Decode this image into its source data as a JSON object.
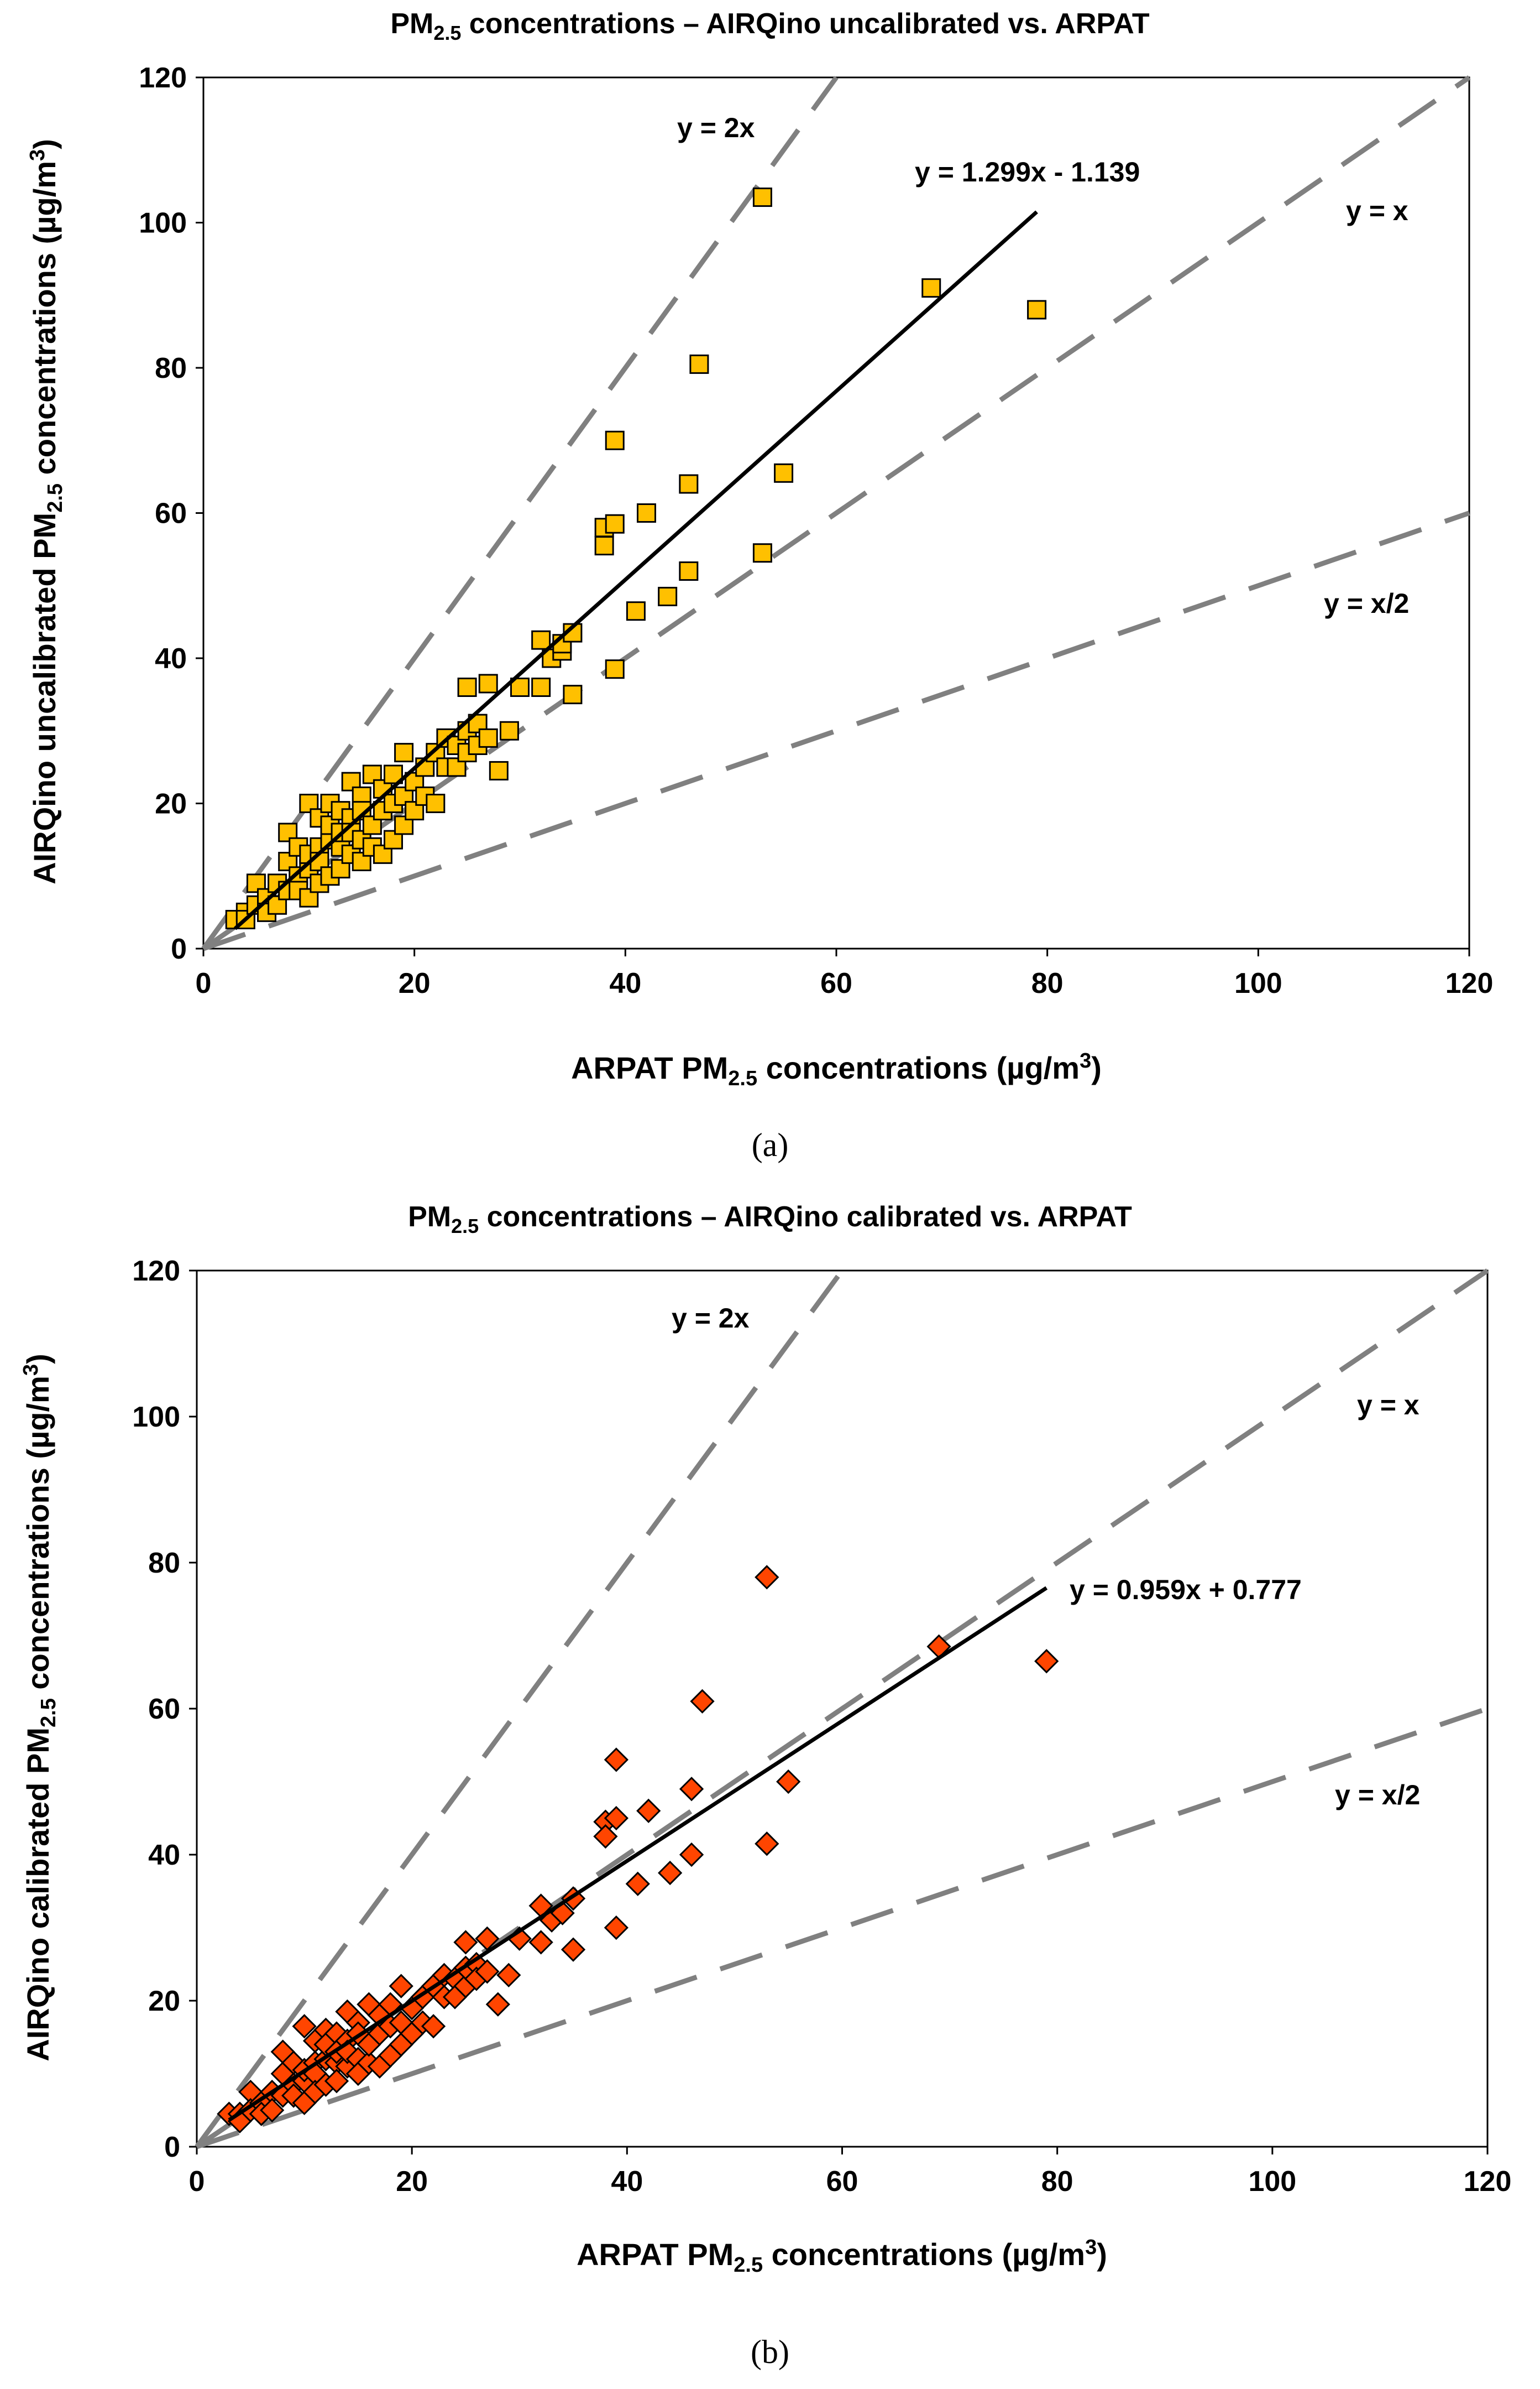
{
  "chart_data": [
    {
      "type": "scatter",
      "title_prefix": "PM",
      "title_sub": "2.5",
      "title_suffix": " concentrations – AIRQino uncalibrated vs. ARPAT",
      "xlabel_prefix": "ARPAT PM",
      "xlabel_sub": "2.5",
      "xlabel_suffix": " concentrations (µg/m",
      "xlabel_sup": "3",
      "xlabel_end": ")",
      "ylabel_prefix": "AIRQino uncalibrated PM",
      "ylabel_sub": "2.5",
      "ylabel_suffix": " concentrations (µg/m",
      "ylabel_sup": "3",
      "ylabel_end": ")",
      "xlim": [
        0,
        120
      ],
      "ylim": [
        0,
        120
      ],
      "xticks": [
        "0",
        "20",
        "40",
        "60",
        "80",
        "100",
        "120"
      ],
      "yticks": [
        "0",
        "20",
        "40",
        "60",
        "80",
        "100",
        "120"
      ],
      "caption": "(a)",
      "marker": "square",
      "marker_color": "#FFC000",
      "ref_lines": [
        {
          "label": "y = 2x",
          "slope": 2
        },
        {
          "label": "y = x",
          "slope": 1
        },
        {
          "label": "y = x/2",
          "slope": 0.5
        }
      ],
      "fit": {
        "label": "y = 1.299x - 1.139",
        "slope": 1.299,
        "intercept": -1.139,
        "x_range": [
          3,
          79
        ]
      },
      "series": [
        {
          "name": "AIRQino uncalibrated",
          "points": [
            [
              3,
              4
            ],
            [
              4,
              5
            ],
            [
              4,
              4
            ],
            [
              5,
              9
            ],
            [
              5,
              6
            ],
            [
              6,
              7
            ],
            [
              6,
              5
            ],
            [
              7,
              9
            ],
            [
              7,
              6
            ],
            [
              8,
              8
            ],
            [
              8,
              12
            ],
            [
              8,
              16
            ],
            [
              9,
              10
            ],
            [
              9,
              14
            ],
            [
              9,
              8
            ],
            [
              10,
              11
            ],
            [
              10,
              20
            ],
            [
              10,
              13
            ],
            [
              10,
              7
            ],
            [
              11,
              14
            ],
            [
              11,
              18
            ],
            [
              11,
              12
            ],
            [
              11,
              9
            ],
            [
              12,
              15
            ],
            [
              12,
              10
            ],
            [
              12,
              20
            ],
            [
              12,
              17
            ],
            [
              13,
              14
            ],
            [
              13,
              19
            ],
            [
              13,
              11
            ],
            [
              13,
              16
            ],
            [
              14,
              13
            ],
            [
              14,
              18
            ],
            [
              14,
              23
            ],
            [
              14,
              16
            ],
            [
              15,
              15
            ],
            [
              15,
              12
            ],
            [
              15,
              21
            ],
            [
              15,
              19
            ],
            [
              16,
              14
            ],
            [
              16,
              24
            ],
            [
              16,
              17
            ],
            [
              17,
              13
            ],
            [
              17,
              19
            ],
            [
              17,
              22
            ],
            [
              18,
              15
            ],
            [
              18,
              20
            ],
            [
              18,
              24
            ],
            [
              19,
              17
            ],
            [
              19,
              21
            ],
            [
              19,
              27
            ],
            [
              20,
              19
            ],
            [
              20,
              23
            ],
            [
              21,
              21
            ],
            [
              21,
              25
            ],
            [
              22,
              20
            ],
            [
              22,
              27
            ],
            [
              23,
              25
            ],
            [
              23,
              29
            ],
            [
              24,
              28
            ],
            [
              24,
              25
            ],
            [
              25,
              27
            ],
            [
              25,
              30
            ],
            [
              25,
              36
            ],
            [
              26,
              31
            ],
            [
              26,
              28
            ],
            [
              27,
              29
            ],
            [
              27,
              36.5
            ],
            [
              28,
              24.5
            ],
            [
              29,
              30
            ],
            [
              30,
              36
            ],
            [
              32,
              36
            ],
            [
              32,
              42.5
            ],
            [
              33,
              40
            ],
            [
              34,
              41
            ],
            [
              34,
              42
            ],
            [
              35,
              35
            ],
            [
              35,
              43.5
            ],
            [
              38,
              58
            ],
            [
              38,
              55.5
            ],
            [
              39,
              70
            ],
            [
              39,
              38.5
            ],
            [
              39,
              58.5
            ],
            [
              41,
              46.5
            ],
            [
              42,
              60
            ],
            [
              44,
              48.5
            ],
            [
              46,
              64
            ],
            [
              46,
              52
            ],
            [
              47,
              80.5
            ],
            [
              53,
              103.5
            ],
            [
              53,
              54.5
            ],
            [
              55,
              65.5
            ],
            [
              69,
              91
            ],
            [
              79,
              88
            ]
          ]
        }
      ]
    },
    {
      "type": "scatter",
      "title_prefix": "PM",
      "title_sub": "2.5",
      "title_suffix": " concentrations – AIRQino calibrated vs. ARPAT",
      "xlabel_prefix": "ARPAT PM",
      "xlabel_sub": "2.5",
      "xlabel_suffix": " concentrations (µg/m",
      "xlabel_sup": "3",
      "xlabel_end": ")",
      "ylabel_prefix": "AIRQino calibrated PM",
      "ylabel_sub": "2.5",
      "ylabel_suffix": " concentrations (µg/m",
      "ylabel_sup": "3",
      "ylabel_end": ")",
      "xlim": [
        0,
        120
      ],
      "ylim": [
        0,
        120
      ],
      "xticks": [
        "0",
        "20",
        "40",
        "60",
        "80",
        "100",
        "120"
      ],
      "yticks": [
        "0",
        "20",
        "40",
        "60",
        "80",
        "100",
        "120"
      ],
      "caption": "(b)",
      "marker": "diamond",
      "marker_color": "#FF4500",
      "ref_lines": [
        {
          "label": "y = 2x",
          "slope": 2
        },
        {
          "label": "y = x",
          "slope": 1
        },
        {
          "label": "y = x/2",
          "slope": 0.5
        }
      ],
      "fit": {
        "label": "y = 0.959x + 0.777",
        "slope": 0.959,
        "intercept": 0.777,
        "x_range": [
          3,
          79
        ]
      },
      "series": [
        {
          "name": "AIRQino calibrated",
          "points": [
            [
              3,
              4.5
            ],
            [
              4,
              4.5
            ],
            [
              4,
              3.5
            ],
            [
              5,
              7.5
            ],
            [
              5,
              5
            ],
            [
              6,
              6
            ],
            [
              6,
              4.5
            ],
            [
              7,
              7.5
            ],
            [
              7,
              5
            ],
            [
              8,
              7
            ],
            [
              8,
              10
            ],
            [
              8,
              13
            ],
            [
              9,
              8.5
            ],
            [
              9,
              11.5
            ],
            [
              9,
              7
            ],
            [
              10,
              9
            ],
            [
              10,
              16.5
            ],
            [
              10,
              10.5
            ],
            [
              10,
              6
            ],
            [
              11,
              11.5
            ],
            [
              11,
              14.5
            ],
            [
              11,
              10
            ],
            [
              11,
              7.5
            ],
            [
              12,
              12
            ],
            [
              12,
              8.5
            ],
            [
              12,
              16
            ],
            [
              12,
              14
            ],
            [
              13,
              11.5
            ],
            [
              13,
              15.5
            ],
            [
              13,
              9
            ],
            [
              13,
              13
            ],
            [
              14,
              11
            ],
            [
              14,
              14.5
            ],
            [
              14,
              18.5
            ],
            [
              14,
              13
            ],
            [
              15,
              12
            ],
            [
              15,
              10
            ],
            [
              15,
              17
            ],
            [
              15,
              15.5
            ],
            [
              16,
              11.5
            ],
            [
              16,
              19.5
            ],
            [
              16,
              14
            ],
            [
              17,
              11
            ],
            [
              17,
              15.5
            ],
            [
              17,
              18
            ],
            [
              18,
              12.5
            ],
            [
              18,
              16.5
            ],
            [
              18,
              19.5
            ],
            [
              19,
              14
            ],
            [
              19,
              17
            ],
            [
              19,
              22
            ],
            [
              20,
              15.5
            ],
            [
              20,
              19
            ],
            [
              21,
              17
            ],
            [
              21,
              20.5
            ],
            [
              22,
              16.5
            ],
            [
              22,
              22
            ],
            [
              23,
              20.5
            ],
            [
              23,
              23.5
            ],
            [
              24,
              23
            ],
            [
              24,
              20.5
            ],
            [
              25,
              22
            ],
            [
              25,
              24.5
            ],
            [
              25,
              28
            ],
            [
              26,
              25
            ],
            [
              26,
              23
            ],
            [
              27,
              24
            ],
            [
              27,
              28.5
            ],
            [
              28,
              19.5
            ],
            [
              29,
              23.5
            ],
            [
              30,
              28.5
            ],
            [
              32,
              28
            ],
            [
              32,
              33
            ],
            [
              33,
              31
            ],
            [
              34,
              32
            ],
            [
              35,
              27
            ],
            [
              35,
              34
            ],
            [
              38,
              44.5
            ],
            [
              38,
              42.5
            ],
            [
              39,
              53
            ],
            [
              39,
              30
            ],
            [
              39,
              45
            ],
            [
              41,
              36
            ],
            [
              42,
              46
            ],
            [
              44,
              37.5
            ],
            [
              46,
              49
            ],
            [
              46,
              40
            ],
            [
              47,
              61
            ],
            [
              53,
              78
            ],
            [
              53,
              41.5
            ],
            [
              55,
              50
            ],
            [
              69,
              68.5
            ],
            [
              79,
              66.5
            ]
          ]
        }
      ]
    }
  ]
}
